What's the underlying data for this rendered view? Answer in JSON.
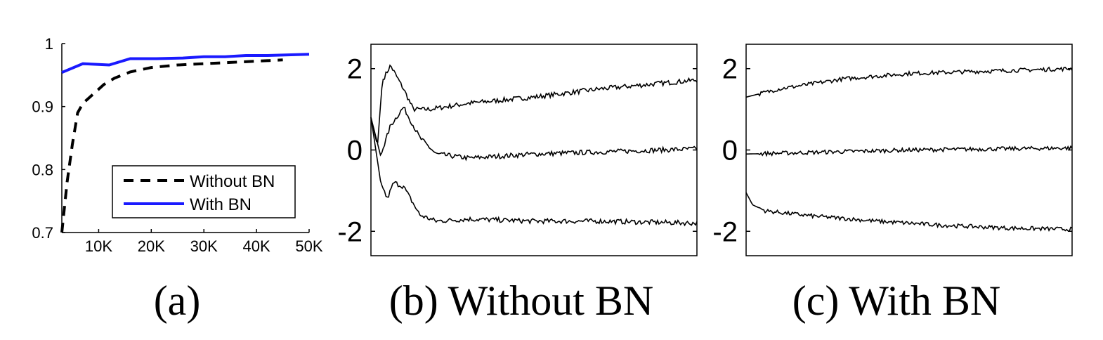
{
  "chart_data": [
    {
      "panel": "a",
      "type": "line",
      "caption": "(a)",
      "x": [
        3,
        7,
        12,
        16,
        21,
        26,
        30,
        34,
        38,
        42,
        46,
        50
      ],
      "x_tick_labels": [
        "10K",
        "20K",
        "30K",
        "40K",
        "50K"
      ],
      "x_ticks": [
        10,
        20,
        30,
        40,
        50
      ],
      "xlim": [
        3,
        50
      ],
      "ylim": [
        0.7,
        1.0
      ],
      "y_ticks": [
        0.7,
        0.8,
        0.9,
        1.0
      ],
      "y_tick_labels": [
        "0.7",
        "0.8",
        "0.9",
        "1"
      ],
      "legend_position": "lower-right",
      "series": [
        {
          "name": "Without BN",
          "color": "#000000",
          "style": "dashed",
          "x": [
            3,
            4,
            5,
            6,
            7,
            9,
            11,
            13,
            16,
            20,
            25,
            30,
            35,
            40,
            45
          ],
          "values": [
            0.7,
            0.78,
            0.84,
            0.89,
            0.905,
            0.92,
            0.935,
            0.945,
            0.955,
            0.962,
            0.966,
            0.968,
            0.97,
            0.972,
            0.974
          ]
        },
        {
          "name": "With BN",
          "color": "#1a1aff",
          "style": "solid",
          "x": [
            3,
            7,
            12,
            16,
            21,
            26,
            30,
            34,
            38,
            42,
            46,
            50
          ],
          "values": [
            0.954,
            0.968,
            0.966,
            0.976,
            0.976,
            0.977,
            0.979,
            0.979,
            0.981,
            0.981,
            0.982,
            0.983
          ]
        }
      ]
    },
    {
      "panel": "b",
      "type": "line",
      "caption": "(b) Without BN",
      "ylim": [
        -2.6,
        2.6
      ],
      "y_ticks": [
        -2,
        0,
        2
      ],
      "y_tick_labels": [
        "-2",
        "0",
        "2"
      ],
      "series": [
        {
          "name": "upper",
          "color": "#000000",
          "x": [
            0,
            0.02,
            0.035,
            0.06,
            0.1,
            0.13,
            0.18,
            0.3,
            0.5,
            0.7,
            1.0
          ],
          "values": [
            0.8,
            0.1,
            1.7,
            2.08,
            1.5,
            1.0,
            1.0,
            1.15,
            1.3,
            1.5,
            1.72
          ]
        },
        {
          "name": "middle",
          "color": "#000000",
          "x": [
            0,
            0.03,
            0.06,
            0.1,
            0.15,
            0.2,
            0.3,
            0.5,
            0.7,
            1.0
          ],
          "values": [
            0.8,
            -0.15,
            0.6,
            1.05,
            0.3,
            -0.1,
            -0.2,
            -0.1,
            -0.05,
            0.03
          ]
        },
        {
          "name": "lower",
          "color": "#000000",
          "x": [
            0,
            0.03,
            0.05,
            0.07,
            0.1,
            0.15,
            0.2,
            0.3,
            0.5,
            0.7,
            1.0
          ],
          "values": [
            0.8,
            -0.8,
            -1.2,
            -0.8,
            -0.9,
            -1.6,
            -1.75,
            -1.7,
            -1.75,
            -1.75,
            -1.8
          ]
        }
      ]
    },
    {
      "panel": "c",
      "type": "line",
      "caption": "(c) With BN",
      "ylim": [
        -2.6,
        2.6
      ],
      "y_ticks": [
        -2,
        0,
        2
      ],
      "y_tick_labels": [
        "-2",
        "0",
        "2"
      ],
      "series": [
        {
          "name": "upper",
          "color": "#000000",
          "x": [
            0,
            0.1,
            0.3,
            0.5,
            0.7,
            1.0
          ],
          "values": [
            1.3,
            1.5,
            1.75,
            1.88,
            1.93,
            2.0
          ]
        },
        {
          "name": "middle",
          "color": "#000000",
          "x": [
            0,
            0.5,
            1.0
          ],
          "values": [
            -0.1,
            0.0,
            0.05
          ]
        },
        {
          "name": "lower",
          "color": "#000000",
          "x": [
            0,
            0.02,
            0.06,
            0.2,
            0.4,
            0.6,
            0.8,
            1.0
          ],
          "values": [
            -1.05,
            -1.35,
            -1.5,
            -1.62,
            -1.75,
            -1.85,
            -1.92,
            -1.95
          ]
        }
      ]
    }
  ]
}
